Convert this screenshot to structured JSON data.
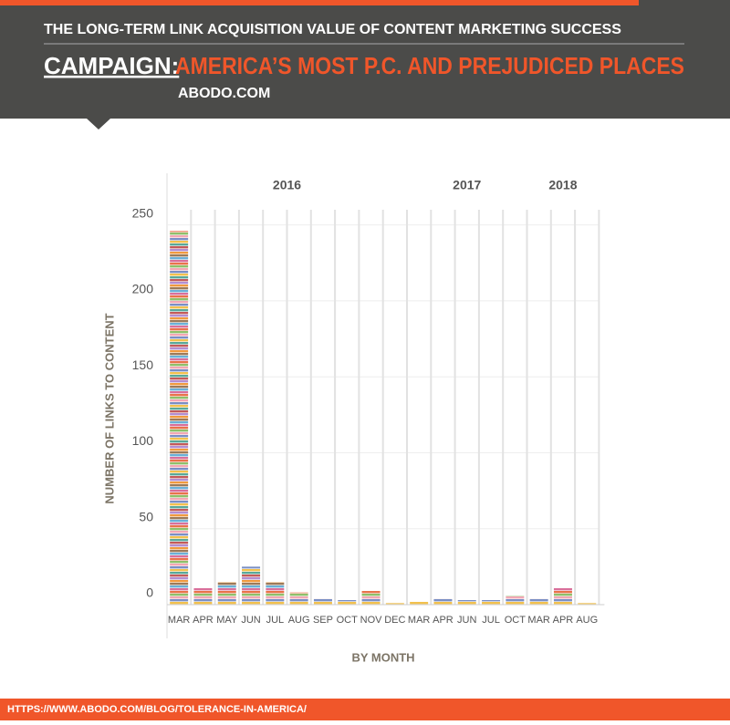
{
  "header": {
    "title": "THE LONG-TERM LINK ACQUISITION VALUE OF CONTENT MARKETING SUCCESS",
    "campaign_label": "CAMPAIGN:",
    "campaign_name": "AMERICA’S MOST P.C. AND PREJUDICED PLACES",
    "source": "ABODO.COM"
  },
  "footer": {
    "url": "HTTPS://WWW.ABODO.COM/BLOG/TOLERANCE-IN-AMERICA/"
  },
  "chart_data": {
    "type": "bar",
    "y_label": "NUMBER OF LINKS TO CONTENT",
    "x_label": "BY MONTH",
    "groups": [
      {
        "name": "2016",
        "categories": [
          "MAR",
          "APR",
          "MAY",
          "JUN",
          "JUL",
          "AUG",
          "SEP",
          "OCT",
          "NOV",
          "DEC"
        ],
        "values": [
          246,
          11,
          15,
          25,
          15,
          8,
          4,
          3,
          9,
          1
        ]
      },
      {
        "name": "2017",
        "categories": [
          "MAR",
          "APR",
          "JUN",
          "JUL",
          "OCT"
        ],
        "values": [
          2,
          4,
          3,
          3,
          6
        ]
      },
      {
        "name": "2018",
        "categories": [
          "MAR",
          "APR",
          "AUG"
        ],
        "values": [
          4,
          11,
          1
        ]
      }
    ],
    "colors": [
      "#e8734a",
      "#8fbf6a",
      "#f2a7b5",
      "#7a8fc4",
      "#f2c14e",
      "#5aa89a",
      "#c45a5a",
      "#b38ed1",
      "#f09a3e",
      "#9c7a5a",
      "#6ab0d8",
      "#d96f9a"
    ],
    "ylim": [
      0,
      260
    ],
    "yticks": [
      0,
      50,
      100,
      150,
      200,
      250
    ],
    "grid": true
  }
}
